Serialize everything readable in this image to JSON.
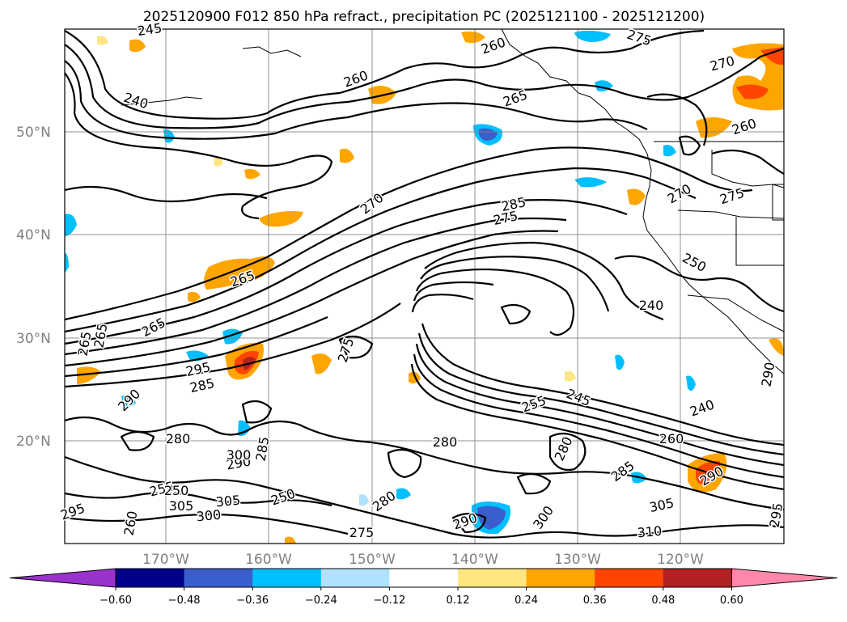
{
  "title": "2025120900 F012 850 hPa refract., precipitation PC (2025121100 - 2025121200)",
  "map": {
    "lat_labels": [
      "50°N",
      "40°N",
      "30°N",
      "20°N"
    ],
    "lon_labels": [
      "170°W",
      "160°W",
      "150°W",
      "140°W",
      "130°W",
      "120°W"
    ],
    "contour_labels": [
      "245",
      "260",
      "240",
      "265",
      "275",
      "270",
      "260",
      "285",
      "275",
      "270",
      "275",
      "260",
      "270",
      "250",
      "240",
      "265",
      "265",
      "265",
      "265",
      "275",
      "295",
      "285",
      "290",
      "280",
      "290",
      "285",
      "255",
      "245",
      "240",
      "260",
      "280",
      "280",
      "285",
      "305",
      "280",
      "275",
      "300",
      "290",
      "310",
      "305",
      "300",
      "305",
      "295",
      "290",
      "290",
      "255",
      "250",
      "260",
      "250",
      "300",
      "295"
    ]
  },
  "colorbar": {
    "ticks": [
      "−0.60",
      "−0.48",
      "−0.36",
      "−0.24",
      "−0.12",
      "0.12",
      "0.24",
      "0.36",
      "0.48",
      "0.60"
    ],
    "colors": [
      "#9932cc",
      "#00008b",
      "#3a5fcd",
      "#00bfff",
      "#b0e2ff",
      "#ffffff",
      "#ffe680",
      "#ffa500",
      "#ff4500",
      "#b22222",
      "#ff88aa"
    ]
  }
}
